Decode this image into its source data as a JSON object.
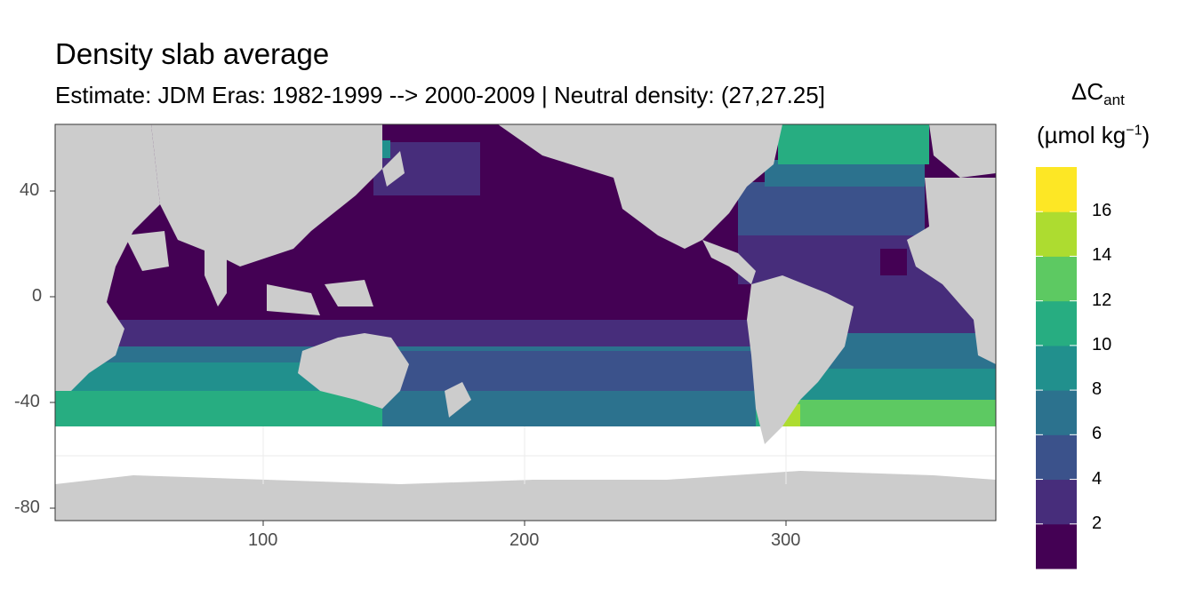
{
  "title": "Density slab average",
  "subtitle": "Estimate: JDM Eras: 1982-1999 --> 2000-2009 | Neutral density: (27,27.25]",
  "legend": {
    "title_symbol": "ΔC",
    "title_subscript": "ant",
    "unit_main": "(µmol kg",
    "unit_exponent": "−1",
    "unit_close": ")",
    "labels": [
      "2",
      "4",
      "6",
      "8",
      "10",
      "12",
      "14",
      "16"
    ],
    "colors": [
      "#440154",
      "#472d7b",
      "#3b528b",
      "#2c728e",
      "#21908d",
      "#27ad81",
      "#5dc962",
      "#addc30",
      "#fde725"
    ]
  },
  "colors": {
    "land": "#cccccc",
    "no_data": "#ffffff",
    "panel_border": "#333333"
  },
  "chart_data": {
    "type": "heatmap",
    "xlim": [
      20,
      380
    ],
    "ylim": [
      -85,
      65
    ],
    "x_ticks": [
      100,
      200,
      300
    ],
    "y_ticks": [
      40,
      0,
      -40,
      -80
    ],
    "x_tick_labels": [
      "100",
      "200",
      "300"
    ],
    "y_tick_labels": [
      "40",
      "0",
      "-40",
      "-80"
    ],
    "legend_breaks": [
      2,
      4,
      6,
      8,
      10,
      12,
      14,
      16
    ],
    "legend_placement": "right",
    "grid": true
  }
}
